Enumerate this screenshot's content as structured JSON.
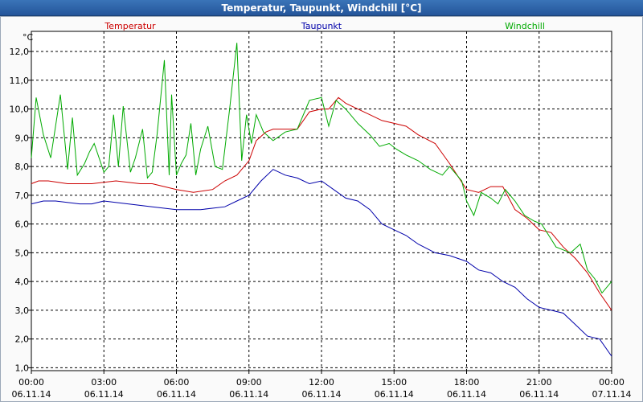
{
  "window": {
    "title": "Temperatur, Taupunkt, Windchill [°C]"
  },
  "colors": {
    "temperatur": "#cc0000",
    "taupunkt": "#0000aa",
    "windchill": "#00aa00"
  },
  "chart_data": {
    "type": "line",
    "ylabel": "°C",
    "ylim": [
      0.9,
      12.7
    ],
    "xlim": [
      0,
      24
    ],
    "grid": true,
    "legend_placement": "top",
    "y_ticks": [
      "1,0",
      "2,0",
      "3,0",
      "4,0",
      "5,0",
      "6,0",
      "7,0",
      "8,0",
      "9,0",
      "10,0",
      "11,0",
      "12,0"
    ],
    "x_ticks": [
      {
        "time": "00:00",
        "date": "06.11.14"
      },
      {
        "time": "03:00",
        "date": "06.11.14"
      },
      {
        "time": "06:00",
        "date": "06.11.14"
      },
      {
        "time": "09:00",
        "date": "06.11.14"
      },
      {
        "time": "12:00",
        "date": "06.11.14"
      },
      {
        "time": "15:00",
        "date": "06.11.14"
      },
      {
        "time": "18:00",
        "date": "06.11.14"
      },
      {
        "time": "21:00",
        "date": "06.11.14"
      },
      {
        "time": "00:00",
        "date": "07.11.14"
      }
    ],
    "series": [
      {
        "name": "Temperatur",
        "x": [
          0,
          0.3,
          0.7,
          1.5,
          2.5,
          3.5,
          4.5,
          5.0,
          6.0,
          6.7,
          7.5,
          8.0,
          8.5,
          9.0,
          9.3,
          9.7,
          10.0,
          10.3,
          11.0,
          11.5,
          12.0,
          12.3,
          12.7,
          13.0,
          13.5,
          14.0,
          14.5,
          15.0,
          15.5,
          16.0,
          16.7,
          17.3,
          18.0,
          18.5,
          19.0,
          19.5,
          20.0,
          20.5,
          21.0,
          21.5,
          22.0,
          22.5,
          23.0,
          23.5,
          24.0
        ],
        "y": [
          7.4,
          7.5,
          7.5,
          7.4,
          7.4,
          7.5,
          7.4,
          7.4,
          7.2,
          7.1,
          7.2,
          7.5,
          7.7,
          8.2,
          8.9,
          9.2,
          9.3,
          9.3,
          9.3,
          9.9,
          10.0,
          10.0,
          10.4,
          10.2,
          10.0,
          9.8,
          9.6,
          9.5,
          9.4,
          9.1,
          8.8,
          8.1,
          7.2,
          7.1,
          7.3,
          7.3,
          6.5,
          6.2,
          5.8,
          5.7,
          5.2,
          4.8,
          4.3,
          3.6,
          3.0
        ]
      },
      {
        "name": "Taupunkt",
        "x": [
          0,
          0.5,
          1.0,
          2.0,
          2.5,
          3.0,
          4.0,
          5.0,
          6.0,
          6.5,
          7.0,
          8.0,
          8.5,
          9.0,
          9.5,
          10.0,
          10.5,
          11.0,
          11.5,
          12.0,
          12.5,
          13.0,
          13.5,
          14.0,
          14.5,
          15.0,
          15.5,
          16.0,
          16.7,
          17.3,
          18.0,
          18.5,
          19.0,
          19.5,
          20.0,
          20.5,
          21.0,
          21.5,
          22.0,
          22.5,
          23.0,
          23.5,
          24.0
        ],
        "y": [
          6.7,
          6.8,
          6.8,
          6.7,
          6.7,
          6.8,
          6.7,
          6.6,
          6.5,
          6.5,
          6.5,
          6.6,
          6.8,
          7.0,
          7.5,
          7.9,
          7.7,
          7.6,
          7.4,
          7.5,
          7.2,
          6.9,
          6.8,
          6.5,
          6.0,
          5.8,
          5.6,
          5.3,
          5.0,
          4.9,
          4.7,
          4.4,
          4.3,
          4.0,
          3.8,
          3.4,
          3.1,
          3.0,
          2.9,
          2.5,
          2.1,
          2.0,
          1.4
        ]
      },
      {
        "name": "Windchill",
        "x": [
          0,
          0.2,
          0.5,
          0.8,
          1.2,
          1.5,
          1.7,
          1.9,
          2.2,
          2.4,
          2.6,
          3.0,
          3.2,
          3.4,
          3.6,
          3.8,
          4.1,
          4.3,
          4.6,
          4.8,
          5.0,
          5.2,
          5.5,
          5.7,
          5.8,
          6.0,
          6.2,
          6.4,
          6.6,
          6.8,
          7.0,
          7.3,
          7.6,
          7.9,
          8.2,
          8.5,
          8.7,
          8.9,
          9.1,
          9.3,
          9.6,
          10.0,
          10.5,
          11.0,
          11.5,
          12.0,
          12.3,
          12.6,
          13.0,
          13.5,
          14.0,
          14.4,
          14.8,
          15.1,
          15.5,
          16.0,
          16.5,
          17.0,
          17.3,
          17.8,
          18.0,
          18.3,
          18.6,
          19.0,
          19.3,
          19.6,
          20.0,
          20.4,
          20.8,
          21.1,
          21.4,
          21.7,
          22.0,
          22.3,
          22.7,
          23.0,
          23.3,
          23.6,
          24.0
        ],
        "y": [
          8.3,
          10.4,
          9.1,
          8.3,
          10.5,
          7.9,
          9.7,
          7.7,
          8.1,
          8.5,
          8.8,
          7.8,
          8.0,
          9.8,
          8.0,
          10.1,
          7.8,
          8.3,
          9.3,
          7.6,
          7.8,
          9.1,
          11.7,
          7.7,
          10.5,
          7.7,
          8.1,
          8.4,
          9.5,
          7.7,
          8.6,
          9.4,
          8.0,
          7.9,
          10.0,
          12.3,
          8.2,
          9.8,
          8.8,
          9.8,
          9.2,
          8.9,
          9.2,
          9.3,
          10.3,
          10.4,
          9.4,
          10.3,
          10.0,
          9.5,
          9.1,
          8.7,
          8.8,
          8.6,
          8.4,
          8.2,
          7.9,
          7.7,
          8.0,
          7.5,
          6.8,
          6.3,
          7.1,
          6.9,
          6.7,
          7.2,
          6.8,
          6.3,
          6.1,
          6.0,
          5.6,
          5.2,
          5.1,
          5.0,
          5.3,
          4.4,
          4.1,
          3.6,
          4.0
        ]
      }
    ]
  }
}
